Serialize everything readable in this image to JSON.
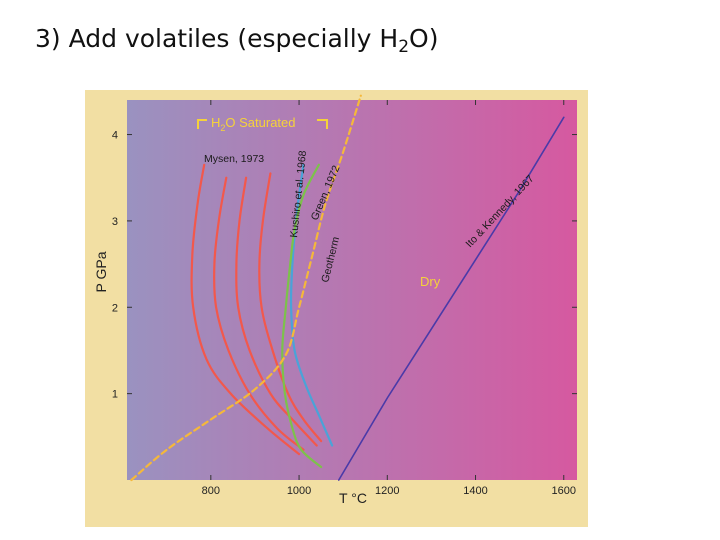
{
  "slide": {
    "title_prefix": "3) Add volatiles (especially H",
    "title_sub": "2",
    "title_suffix": "O)"
  },
  "chart_data": {
    "type": "line",
    "xlabel": "T °C",
    "ylabel": "P GPa",
    "xlim": [
      610,
      1630
    ],
    "ylim": [
      0,
      4.4
    ],
    "x_ticks": [
      "800",
      "1000",
      "1200",
      "1400",
      "1600"
    ],
    "x_tick_values": [
      800,
      1000,
      1200,
      1400,
      1600
    ],
    "y_ticks": [
      "1",
      "2",
      "3",
      "4"
    ],
    "y_tick_values": [
      1,
      2,
      3,
      4
    ],
    "grid": false,
    "background_gradient": [
      "#9a92c0",
      "#d659a0"
    ],
    "group_label": {
      "prefix": "H",
      "sub": "2",
      "suffix": "O Saturated"
    },
    "series": [
      {
        "name": "Mysen, 1973",
        "color": "#f2584c",
        "label": "Mysen, 1973",
        "x": [
          785,
          770,
          758,
          760,
          790,
          845,
          928,
          1000
        ],
        "y": [
          3.65,
          3.2,
          2.6,
          2.0,
          1.4,
          1.0,
          0.6,
          0.3
        ]
      },
      {
        "name": "Mysen, 1973",
        "color": "#f2584c",
        "label": "",
        "x": [
          835,
          818,
          808,
          812,
          840,
          888,
          950,
          1010
        ],
        "y": [
          3.5,
          3.0,
          2.5,
          2.0,
          1.5,
          1.0,
          0.6,
          0.35
        ]
      },
      {
        "name": "Mysen, 1973",
        "color": "#f2584c",
        "label": "",
        "x": [
          880,
          865,
          858,
          862,
          888,
          935,
          985,
          1040
        ],
        "y": [
          3.5,
          3.0,
          2.5,
          2.0,
          1.5,
          1.0,
          0.7,
          0.4
        ]
      },
      {
        "name": "Mysen, 1973",
        "color": "#f2584c",
        "label": "",
        "x": [
          935,
          918,
          910,
          915,
          940,
          975,
          1010,
          1050
        ],
        "y": [
          3.55,
          3.0,
          2.5,
          2.0,
          1.5,
          1.0,
          0.7,
          0.45
        ]
      },
      {
        "name": "Kushiro et al. 1968",
        "color": "#4aa3d8",
        "label": "Kushiro et al. 1968",
        "x": [
          1010,
          995,
          985,
          982,
          990,
          1015,
          1045,
          1075
        ],
        "y": [
          3.65,
          3.1,
          2.5,
          2.0,
          1.5,
          1.1,
          0.75,
          0.4
        ]
      },
      {
        "name": "Green, 1972",
        "color": "#7cc24a",
        "label": "Green, 1972",
        "x": [
          1045,
          1010,
          990,
          980,
          970,
          962,
          968,
          985,
          1005,
          1050
        ],
        "y": [
          3.65,
          3.3,
          2.9,
          2.5,
          2.0,
          1.5,
          1.0,
          0.6,
          0.35,
          0.15
        ]
      },
      {
        "name": "Geotherm",
        "color": "#f5b83a",
        "label": "Geotherm",
        "x": [
          620,
          700,
          800,
          900,
          970,
          1000,
          1030,
          1060,
          1100,
          1140
        ],
        "y": [
          0.0,
          0.35,
          0.7,
          1.05,
          1.45,
          2.0,
          2.6,
          3.2,
          3.8,
          4.45
        ]
      },
      {
        "name": "Ito & Kennedy, 1967",
        "color": "#4a3aa8",
        "label": "Ito & Kennedy, 1967",
        "x": [
          1090,
          1200,
          1300,
          1400,
          1500,
          1600
        ],
        "y": [
          0.0,
          0.95,
          1.75,
          2.55,
          3.35,
          4.2
        ]
      }
    ],
    "annotations": [
      "Dry"
    ]
  }
}
